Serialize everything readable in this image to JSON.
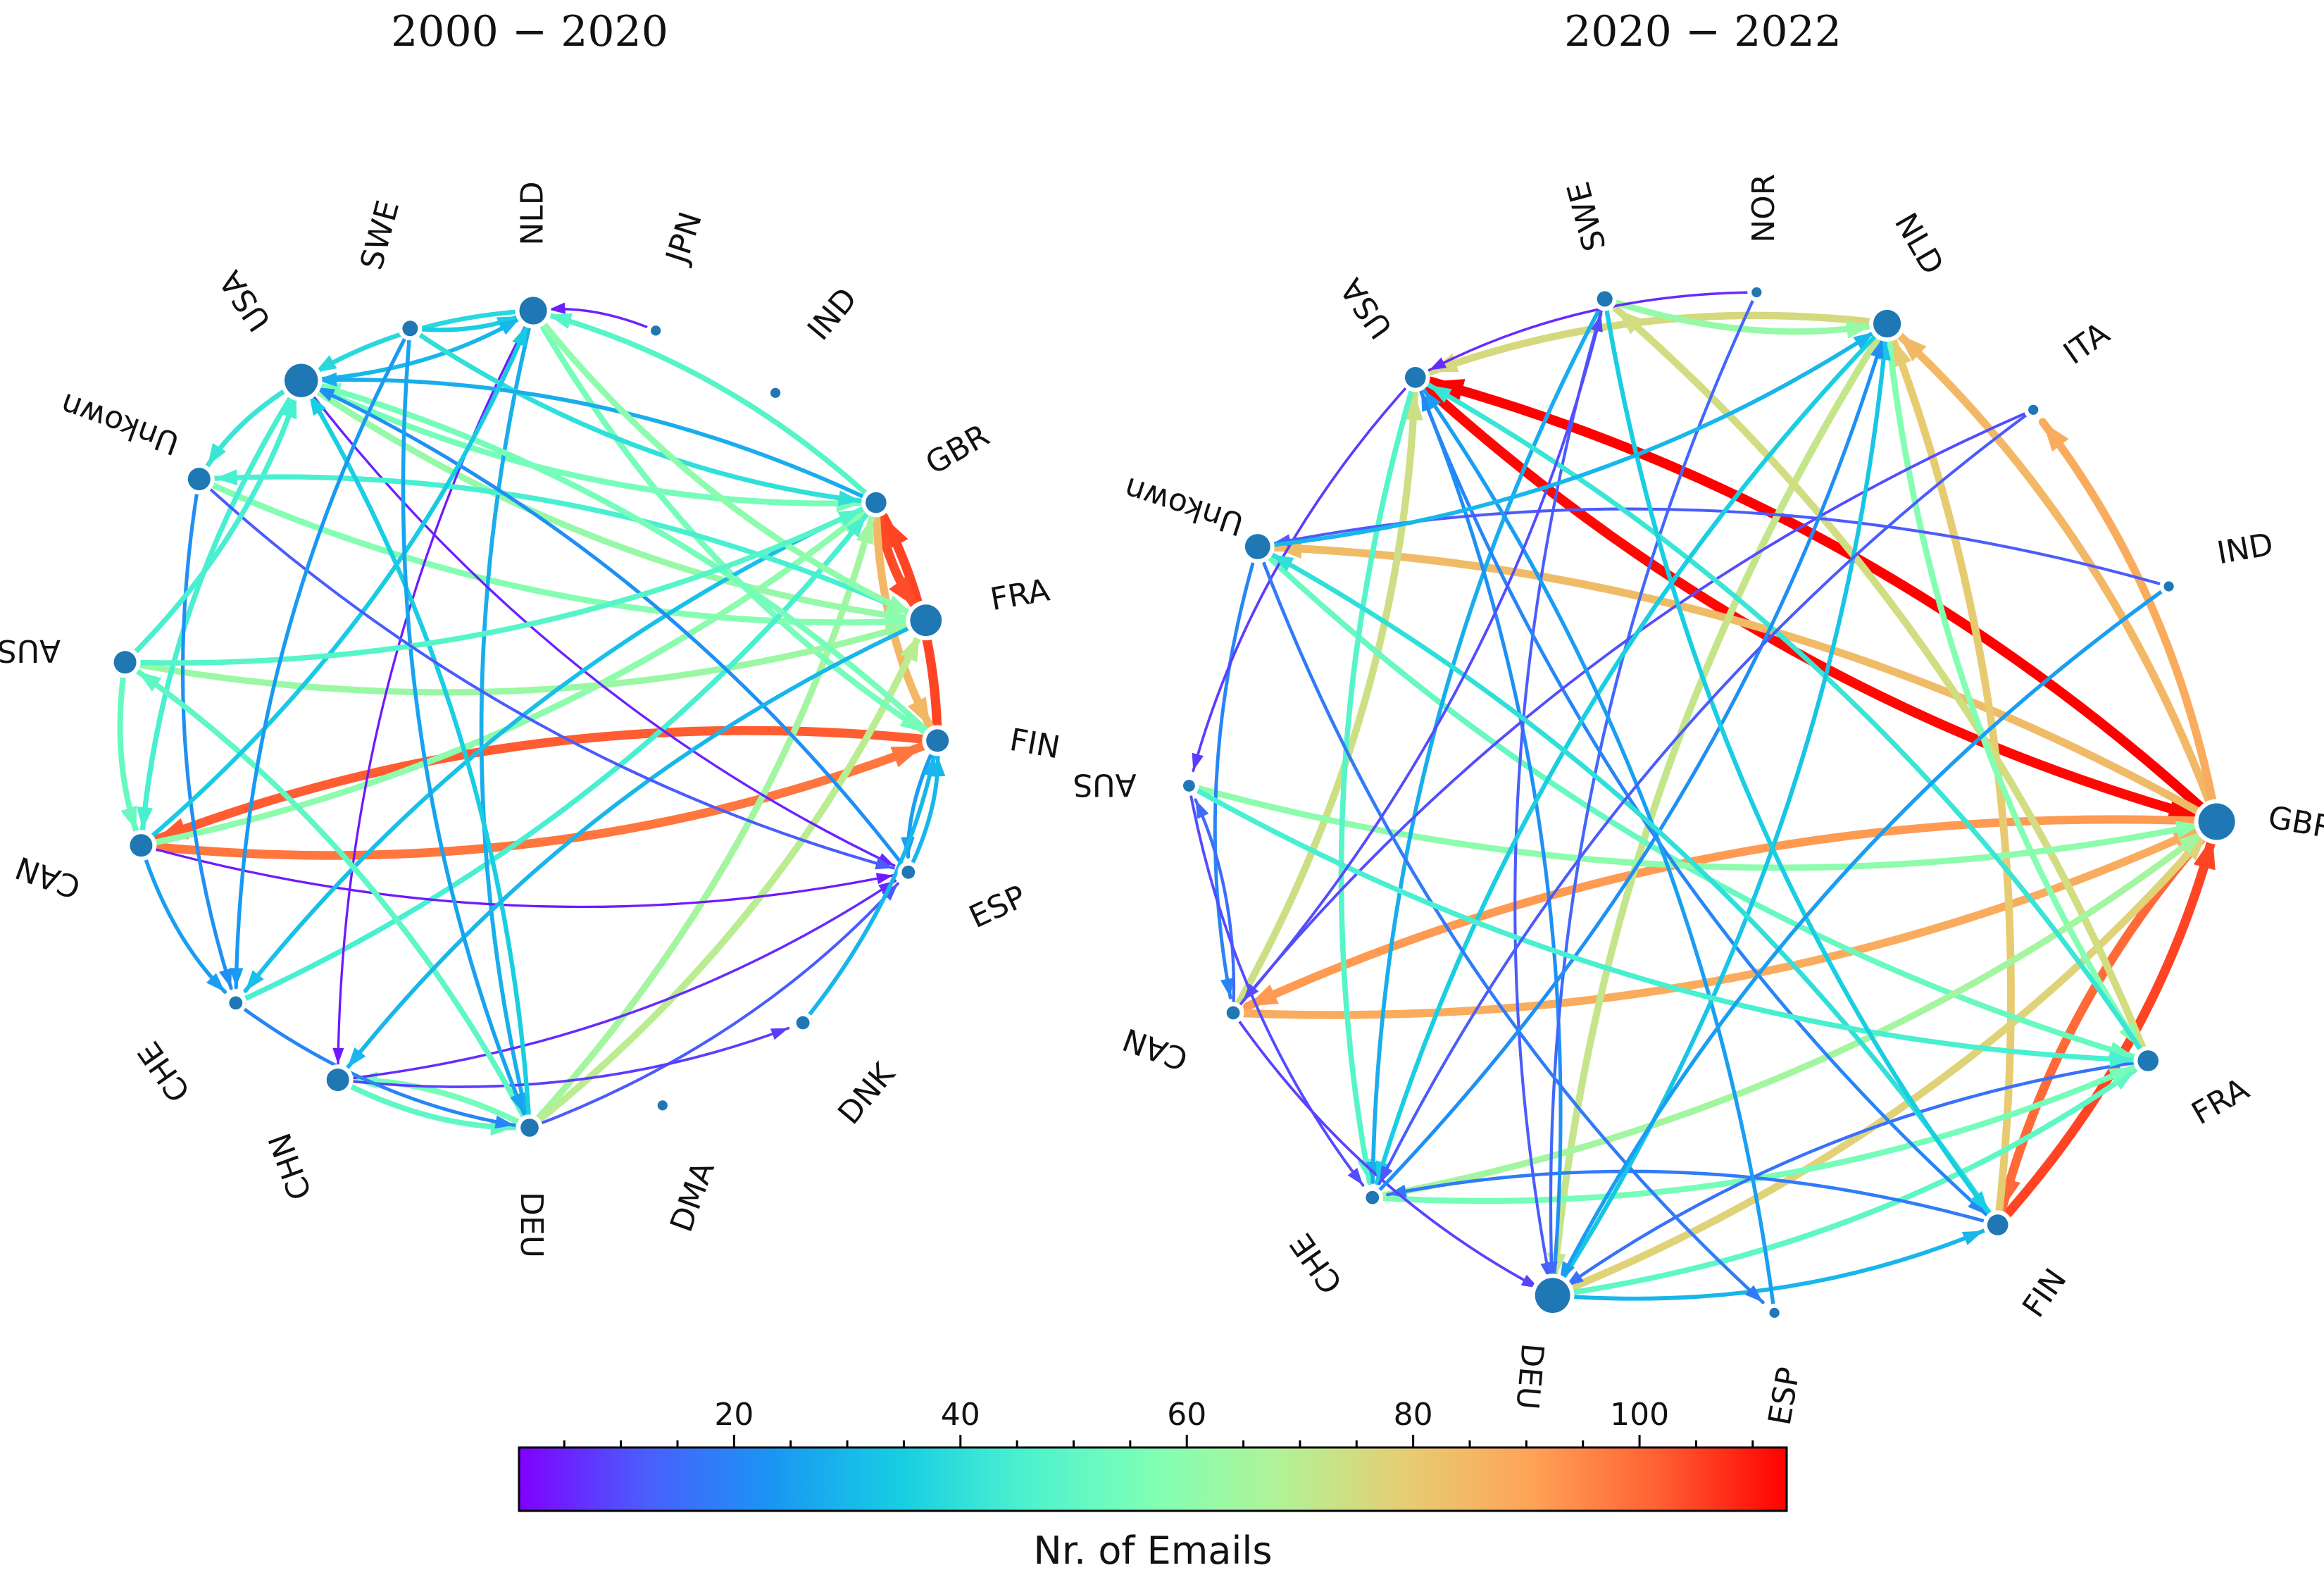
{
  "figure": {
    "colorbar": {
      "label": "Nr. of Emails",
      "min": 1,
      "max": 113,
      "ticks": [
        "20",
        "40",
        "60",
        "80",
        "100"
      ],
      "tick_values": [
        20,
        40,
        60,
        80,
        100
      ],
      "colormap": "rainbow"
    },
    "panels": [
      {
        "title": "2000 − 2020",
        "nodes": [
          {
            "label": "NLD",
            "emails": 25
          },
          {
            "label": "SWE",
            "emails": 5
          },
          {
            "label": "USA",
            "emails": 40
          },
          {
            "label": "Unkown",
            "emails": 15
          },
          {
            "label": "AUS",
            "emails": 15
          },
          {
            "label": "CAN",
            "emails": 15
          },
          {
            "label": "CHE",
            "emails": 3
          },
          {
            "label": "CHN",
            "emails": 15
          },
          {
            "label": "DEU",
            "emails": 8
          },
          {
            "label": "DMA",
            "emails": 1
          },
          {
            "label": "DNK",
            "emails": 3
          },
          {
            "label": "ESP",
            "emails": 3
          },
          {
            "label": "FIN",
            "emails": 15
          },
          {
            "label": "FRA",
            "emails": 35
          },
          {
            "label": "GBR",
            "emails": 12
          },
          {
            "label": "IND",
            "emails": 1
          },
          {
            "label": "JPN",
            "emails": 1
          }
        ],
        "edges": [
          {
            "from": "FIN",
            "to": "CAN",
            "emails": 102
          },
          {
            "from": "CAN",
            "to": "FIN",
            "emails": 98
          },
          {
            "from": "FIN",
            "to": "GBR",
            "emails": 105
          },
          {
            "from": "GBR",
            "to": "FRA",
            "emails": 104
          },
          {
            "from": "GBR",
            "to": "FIN",
            "emails": 85
          },
          {
            "from": "DEU",
            "to": "GBR",
            "emails": 65
          },
          {
            "from": "DEU",
            "to": "FRA",
            "emails": 70
          },
          {
            "from": "CAN",
            "to": "GBR",
            "emails": 60
          },
          {
            "from": "USA",
            "to": "FRA",
            "emails": 62
          },
          {
            "from": "NLD",
            "to": "FIN",
            "emails": 55
          },
          {
            "from": "GBR",
            "to": "NLD",
            "emails": 48
          },
          {
            "from": "USA",
            "to": "GBR",
            "emails": 55
          },
          {
            "from": "Unkown",
            "to": "FRA",
            "emails": 58
          },
          {
            "from": "AUS",
            "to": "FRA",
            "emails": 63
          },
          {
            "from": "CHN",
            "to": "DEU",
            "emails": 50
          },
          {
            "from": "DEU",
            "to": "CHN",
            "emails": 55
          },
          {
            "from": "CHE",
            "to": "GBR",
            "emails": 45
          },
          {
            "from": "AUS",
            "to": "CAN",
            "emails": 52
          },
          {
            "from": "USA",
            "to": "CAN",
            "emails": 45
          },
          {
            "from": "NLD",
            "to": "USA",
            "emails": 38
          },
          {
            "from": "SWE",
            "to": "NLD",
            "emails": 35
          },
          {
            "from": "USA",
            "to": "NLD",
            "emails": 30
          },
          {
            "from": "NLD",
            "to": "DEU",
            "emails": 28
          },
          {
            "from": "ESP",
            "to": "FIN",
            "emails": 30
          },
          {
            "from": "FIN",
            "to": "ESP",
            "emails": 25
          },
          {
            "from": "DEU",
            "to": "ESP",
            "emails": 12
          },
          {
            "from": "CHN",
            "to": "DNK",
            "emails": 8
          },
          {
            "from": "CHN",
            "to": "ESP",
            "emails": 6
          },
          {
            "from": "JPN",
            "to": "NLD",
            "emails": 5
          },
          {
            "from": "NLD",
            "to": "CHN",
            "emails": 4
          },
          {
            "from": "USA",
            "to": "ESP",
            "emails": 5
          },
          {
            "from": "CAN",
            "to": "ESP",
            "emails": 4
          },
          {
            "from": "Unkown",
            "to": "CHE",
            "emails": 22
          },
          {
            "from": "CAN",
            "to": "CHE",
            "emails": 25
          },
          {
            "from": "CHE",
            "to": "DEU",
            "emails": 20
          },
          {
            "from": "GBR",
            "to": "CHE",
            "emails": 32
          },
          {
            "from": "FRA",
            "to": "Unkown",
            "emails": 45
          },
          {
            "from": "FIN",
            "to": "USA",
            "emails": 55
          },
          {
            "from": "SWE",
            "to": "GBR",
            "emails": 40
          },
          {
            "from": "DEU",
            "to": "USA",
            "emails": 35
          },
          {
            "from": "DEU",
            "to": "AUS",
            "emails": 50
          },
          {
            "from": "ESP",
            "to": "USA",
            "emails": 22
          },
          {
            "from": "FRA",
            "to": "CHN",
            "emails": 30
          },
          {
            "from": "GBR",
            "to": "USA",
            "emails": 28
          },
          {
            "from": "CAN",
            "to": "NLD",
            "emails": 34
          },
          {
            "from": "NLD",
            "to": "FRA",
            "emails": 60
          },
          {
            "from": "SWE",
            "to": "DEU",
            "emails": 26
          },
          {
            "from": "AUS",
            "to": "GBR",
            "emails": 48
          },
          {
            "from": "Unkown",
            "to": "ESP",
            "emails": 12
          },
          {
            "from": "DNK",
            "to": "FIN",
            "emails": 30
          },
          {
            "from": "SWE",
            "to": "CHE",
            "emails": 24
          },
          {
            "from": "USA",
            "to": "Unkown",
            "emails": 42
          },
          {
            "from": "AUS",
            "to": "USA",
            "emails": 45
          }
        ]
      },
      {
        "title": "2020 − 2022",
        "nodes": [
          {
            "label": "NLD",
            "emails": 25
          },
          {
            "label": "NOR",
            "emails": 1
          },
          {
            "label": "SWE",
            "emails": 5
          },
          {
            "label": "USA",
            "emails": 12
          },
          {
            "label": "Unkown",
            "emails": 20
          },
          {
            "label": "AUS",
            "emails": 2
          },
          {
            "label": "CAN",
            "emails": 3
          },
          {
            "label": "CHE",
            "emails": 3
          },
          {
            "label": "DEU",
            "emails": 45
          },
          {
            "label": "ESP",
            "emails": 1
          },
          {
            "label": "FIN",
            "emails": 12
          },
          {
            "label": "FRA",
            "emails": 12
          },
          {
            "label": "GBR",
            "emails": 50
          },
          {
            "label": "IND",
            "emails": 1
          },
          {
            "label": "ITA",
            "emails": 1
          }
        ],
        "edges": [
          {
            "from": "GBR",
            "to": "USA",
            "emails": 113
          },
          {
            "from": "USA",
            "to": "GBR",
            "emails": 112
          },
          {
            "from": "FIN",
            "to": "GBR",
            "emails": 105
          },
          {
            "from": "GBR",
            "to": "FIN",
            "emails": 100
          },
          {
            "from": "GBR",
            "to": "CAN",
            "emails": 92
          },
          {
            "from": "CAN",
            "to": "GBR",
            "emails": 88
          },
          {
            "from": "GBR",
            "to": "NLD",
            "emails": 85
          },
          {
            "from": "GBR",
            "to": "Unkown",
            "emails": 84
          },
          {
            "from": "FIN",
            "to": "NLD",
            "emails": 80
          },
          {
            "from": "NLD",
            "to": "USA",
            "emails": 76
          },
          {
            "from": "DEU",
            "to": "GBR",
            "emails": 78
          },
          {
            "from": "NLD",
            "to": "DEU",
            "emails": 72
          },
          {
            "from": "FRA",
            "to": "SWE",
            "emails": 75
          },
          {
            "from": "CAN",
            "to": "USA",
            "emails": 74
          },
          {
            "from": "SWE",
            "to": "NLD",
            "emails": 62
          },
          {
            "from": "NLD",
            "to": "FRA",
            "emails": 58
          },
          {
            "from": "DEU",
            "to": "FRA",
            "emails": 50
          },
          {
            "from": "DEU",
            "to": "FIN",
            "emails": 30
          },
          {
            "from": "CHE",
            "to": "FRA",
            "emails": 55
          },
          {
            "from": "Unkown",
            "to": "FRA",
            "emails": 52
          },
          {
            "from": "AUS",
            "to": "GBR",
            "emails": 60
          },
          {
            "from": "CHE",
            "to": "GBR",
            "emails": 65
          },
          {
            "from": "USA",
            "to": "CHE",
            "emails": 48
          },
          {
            "from": "SWE",
            "to": "CHE",
            "emails": 28
          },
          {
            "from": "Unkown",
            "to": "CAN",
            "emails": 20
          },
          {
            "from": "CAN",
            "to": "AUS",
            "emails": 15
          },
          {
            "from": "AUS",
            "to": "CHE",
            "emails": 10
          },
          {
            "from": "USA",
            "to": "AUS",
            "emails": 8
          },
          {
            "from": "FIN",
            "to": "CHE",
            "emails": 18
          },
          {
            "from": "DEU",
            "to": "USA",
            "emails": 22
          },
          {
            "from": "SWE",
            "to": "DEU",
            "emails": 12
          },
          {
            "from": "NOR",
            "to": "DEU",
            "emails": 14
          },
          {
            "from": "FRA",
            "to": "DEU",
            "emails": 16
          },
          {
            "from": "CAN",
            "to": "DEU",
            "emails": 9
          },
          {
            "from": "USA",
            "to": "FIN",
            "emails": 20
          },
          {
            "from": "GBR",
            "to": "ITA",
            "emails": 88
          },
          {
            "from": "IND",
            "to": "Unkown",
            "emails": 12
          },
          {
            "from": "ITA",
            "to": "CAN",
            "emails": 10
          },
          {
            "from": "FRA",
            "to": "USA",
            "emails": 42
          },
          {
            "from": "NLD",
            "to": "CHE",
            "emails": 35
          },
          {
            "from": "ESP",
            "to": "USA",
            "emails": 25
          },
          {
            "from": "Unkown",
            "to": "ESP",
            "emails": 18
          },
          {
            "from": "DEU",
            "to": "NLD",
            "emails": 33
          },
          {
            "from": "CHE",
            "to": "NLD",
            "emails": 22
          },
          {
            "from": "FIN",
            "to": "Unkown",
            "emails": 40
          },
          {
            "from": "AUS",
            "to": "FRA",
            "emails": 45
          },
          {
            "from": "SWE",
            "to": "FIN",
            "emails": 35
          },
          {
            "from": "NOR",
            "to": "USA",
            "emails": 6
          },
          {
            "from": "ITA",
            "to": "CHE",
            "emails": 12
          },
          {
            "from": "IND",
            "to": "DEU",
            "emails": 25
          },
          {
            "from": "CAN",
            "to": "SWE",
            "emails": 10
          },
          {
            "from": "Unkown",
            "to": "NLD",
            "emails": 30
          }
        ]
      }
    ]
  }
}
